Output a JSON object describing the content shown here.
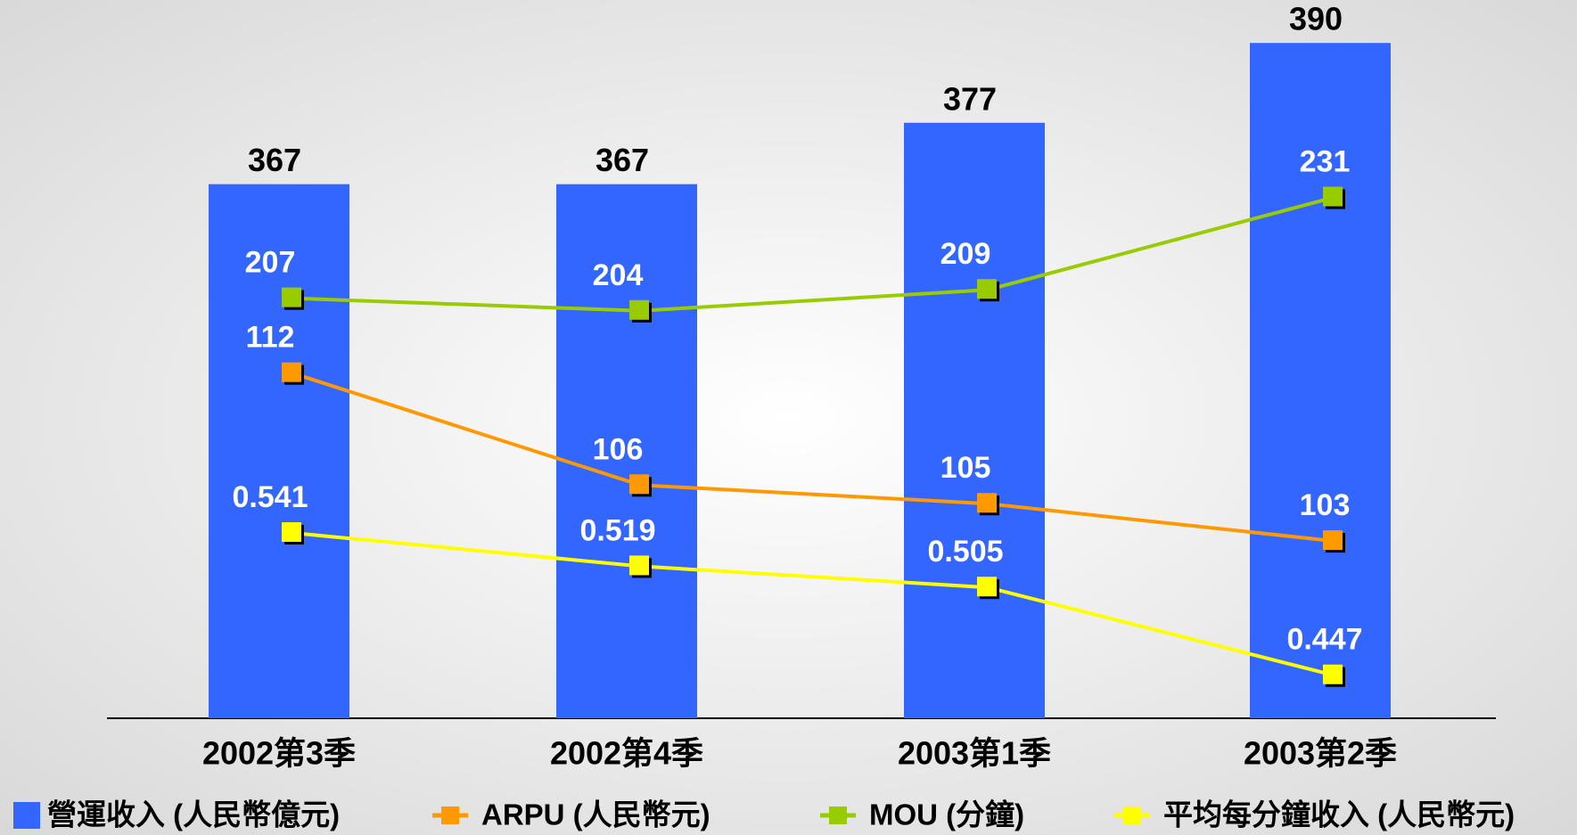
{
  "chart_data": {
    "type": "bar",
    "categories": [
      "2002第3季",
      "2002第4季",
      "2003第1季",
      "2003第2季"
    ],
    "series": [
      {
        "name": "營運收入 (人民幣億元)",
        "type": "bar",
        "color": "#3366ff",
        "values": [
          367,
          367,
          377,
          390
        ],
        "ylim": [
          280,
          397
        ]
      },
      {
        "name": "ARPU (人民幣元)",
        "type": "line",
        "color": "#ff9900",
        "values": [
          112,
          106,
          105,
          103
        ],
        "ylim": [
          93.5,
          132
        ]
      },
      {
        "name": "MOU (分鐘)",
        "type": "line",
        "color": "#99cc00",
        "values": [
          207,
          204,
          209,
          231
        ],
        "ylim": [
          107,
          278
        ]
      },
      {
        "name": "平均每分鐘收入 (人民幣元)",
        "type": "line",
        "color": "#ffff00",
        "values": [
          0.541,
          0.519,
          0.505,
          0.447
        ],
        "ylim": [
          0.4186,
          0.893
        ]
      }
    ]
  }
}
